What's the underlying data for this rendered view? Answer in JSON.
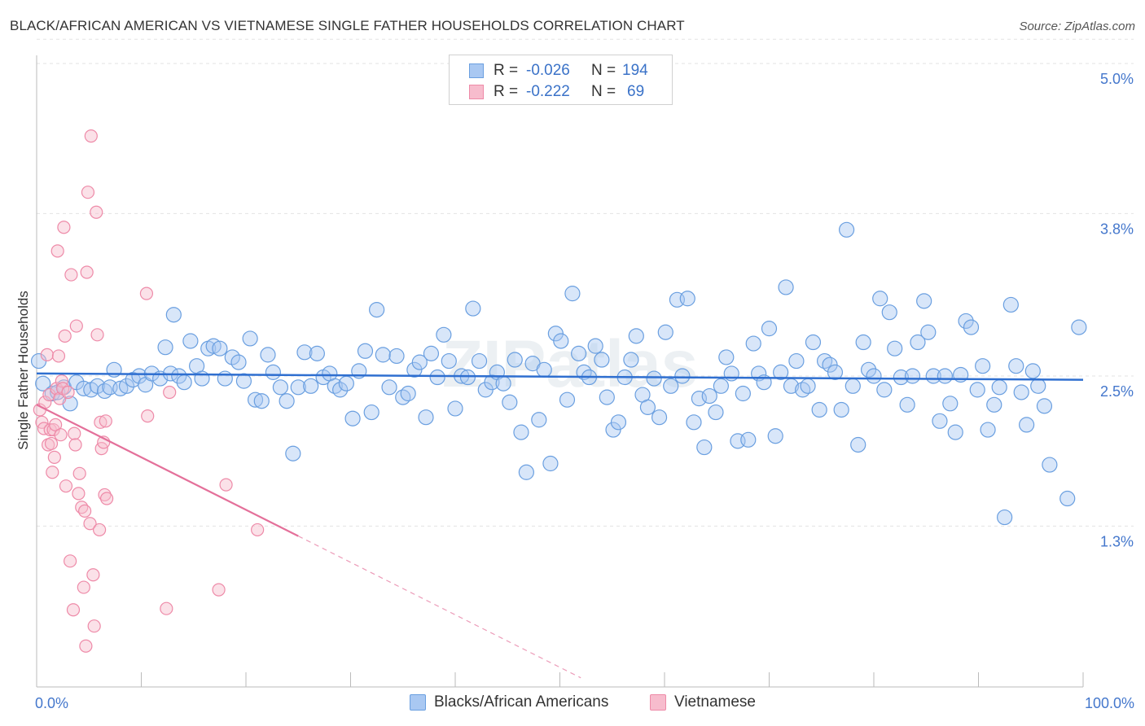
{
  "title": "BLACK/AFRICAN AMERICAN VS VIETNAMESE SINGLE FATHER HOUSEHOLDS CORRELATION CHART",
  "source": "Source: ZipAtlas.com",
  "watermark": "ZIPatlas",
  "colors": {
    "blue_fill": "#a9c8f2",
    "blue_stroke": "#6a9fe0",
    "blue_line": "#2f6fd0",
    "pink_fill": "#f7bccd",
    "pink_stroke": "#ee8aa8",
    "pink_line": "#e4709a",
    "tick_label": "#4477cc"
  },
  "legend_top": [
    {
      "r_label": "R =",
      "r_value": "-0.026",
      "n_label": "N =",
      "n_value": "194"
    },
    {
      "r_label": "R =",
      "r_value": "-0.222",
      "n_label": "N =",
      "n_value": "69"
    }
  ],
  "chart_data": {
    "type": "scatter",
    "xlabel": "",
    "ylabel": "Single Father Households",
    "xlim": [
      0,
      100
    ],
    "ylim": [
      0,
      5.2
    ],
    "x_tick_labels": [
      "0.0%",
      "100.0%"
    ],
    "y_ticks": [
      1.3,
      2.5,
      3.8,
      5.0
    ],
    "y_tick_labels": [
      "1.3%",
      "2.5%",
      "3.8%",
      "5.0%"
    ],
    "grid": true,
    "legend_position": "bottom",
    "series": [
      {
        "name": "Blacks/African Americans",
        "trend": {
          "x0": 0,
          "y0": 2.52,
          "x1": 100,
          "y1": 2.47
        },
        "points": [
          [
            0.2,
            2.62
          ],
          [
            0.6,
            2.44
          ],
          [
            1.5,
            2.36
          ],
          [
            2,
            2.37
          ],
          [
            2.6,
            2.41
          ],
          [
            3.2,
            2.28
          ],
          [
            3.8,
            2.45
          ],
          [
            4.5,
            2.4
          ],
          [
            5.2,
            2.39
          ],
          [
            5.8,
            2.42
          ],
          [
            6.5,
            2.38
          ],
          [
            7,
            2.41
          ],
          [
            7.4,
            2.55
          ],
          [
            8,
            2.4
          ],
          [
            8.6,
            2.42
          ],
          [
            9.2,
            2.47
          ],
          [
            9.8,
            2.5
          ],
          [
            10.4,
            2.43
          ],
          [
            11,
            2.52
          ],
          [
            11.8,
            2.48
          ],
          [
            12.3,
            2.73
          ],
          [
            12.8,
            2.52
          ],
          [
            13.1,
            2.99
          ],
          [
            13.6,
            2.5
          ],
          [
            14.1,
            2.45
          ],
          [
            14.7,
            2.78
          ],
          [
            15.3,
            2.58
          ],
          [
            15.8,
            2.48
          ],
          [
            16.4,
            2.72
          ],
          [
            16.9,
            2.74
          ],
          [
            17.5,
            2.72
          ],
          [
            18,
            2.48
          ],
          [
            18.7,
            2.65
          ],
          [
            19.3,
            2.61
          ],
          [
            19.8,
            2.46
          ],
          [
            20.4,
            2.8
          ],
          [
            20.9,
            2.31
          ],
          [
            21.5,
            2.3
          ],
          [
            22.1,
            2.67
          ],
          [
            22.6,
            2.53
          ],
          [
            23.3,
            2.41
          ],
          [
            23.9,
            2.3
          ],
          [
            24.5,
            1.88
          ],
          [
            25,
            2.41
          ],
          [
            25.6,
            2.69
          ],
          [
            26.2,
            2.42
          ],
          [
            26.8,
            2.68
          ],
          [
            27.4,
            2.49
          ],
          [
            28,
            2.52
          ],
          [
            28.5,
            2.42
          ],
          [
            29,
            2.39
          ],
          [
            29.6,
            2.44
          ],
          [
            30.2,
            2.16
          ],
          [
            30.8,
            2.54
          ],
          [
            31.4,
            2.7
          ],
          [
            32,
            2.21
          ],
          [
            32.5,
            3.03
          ],
          [
            33.1,
            2.67
          ],
          [
            33.7,
            2.41
          ],
          [
            34.4,
            2.66
          ],
          [
            35,
            2.33
          ],
          [
            35.5,
            2.36
          ],
          [
            36.1,
            2.55
          ],
          [
            36.6,
            2.61
          ],
          [
            37.2,
            2.17
          ],
          [
            37.7,
            2.68
          ],
          [
            38.3,
            2.49
          ],
          [
            38.9,
            2.83
          ],
          [
            39.4,
            2.62
          ],
          [
            40,
            2.24
          ],
          [
            40.6,
            2.5
          ],
          [
            41.2,
            2.49
          ],
          [
            41.7,
            3.04
          ],
          [
            42.3,
            2.62
          ],
          [
            42.9,
            2.39
          ],
          [
            43.5,
            2.45
          ],
          [
            44,
            2.53
          ],
          [
            44.6,
            2.44
          ],
          [
            45.2,
            2.29
          ],
          [
            45.7,
            2.63
          ],
          [
            46.3,
            2.05
          ],
          [
            46.8,
            1.73
          ],
          [
            47.4,
            2.6
          ],
          [
            48,
            2.15
          ],
          [
            48.5,
            2.55
          ],
          [
            49.1,
            1.8
          ],
          [
            49.6,
            2.84
          ],
          [
            50.1,
            2.78
          ],
          [
            50.7,
            2.31
          ],
          [
            51.2,
            3.16
          ],
          [
            51.8,
            2.68
          ],
          [
            52.3,
            2.53
          ],
          [
            52.8,
            2.49
          ],
          [
            53.4,
            2.74
          ],
          [
            54,
            2.63
          ],
          [
            54.5,
            2.33
          ],
          [
            55.1,
            2.07
          ],
          [
            55.6,
            2.13
          ],
          [
            56.2,
            2.49
          ],
          [
            56.8,
            2.63
          ],
          [
            57.3,
            2.82
          ],
          [
            57.9,
            2.35
          ],
          [
            58.4,
            2.25
          ],
          [
            59,
            2.48
          ],
          [
            59.5,
            2.17
          ],
          [
            60.1,
            2.85
          ],
          [
            60.6,
            2.42
          ],
          [
            61.2,
            3.11
          ],
          [
            61.7,
            2.5
          ],
          [
            62.2,
            3.12
          ],
          [
            62.8,
            2.13
          ],
          [
            63.3,
            2.32
          ],
          [
            63.8,
            1.93
          ],
          [
            64.3,
            2.34
          ],
          [
            64.9,
            2.21
          ],
          [
            65.4,
            2.42
          ],
          [
            65.9,
            2.65
          ],
          [
            66.4,
            2.52
          ],
          [
            67,
            1.98
          ],
          [
            67.5,
            2.36
          ],
          [
            68,
            1.99
          ],
          [
            68.5,
            2.76
          ],
          [
            69,
            2.52
          ],
          [
            69.5,
            2.45
          ],
          [
            70,
            2.88
          ],
          [
            70.6,
            2.02
          ],
          [
            71.1,
            2.53
          ],
          [
            71.6,
            3.21
          ],
          [
            72.1,
            2.42
          ],
          [
            72.6,
            2.62
          ],
          [
            73.2,
            2.39
          ],
          [
            73.7,
            2.42
          ],
          [
            74.2,
            2.77
          ],
          [
            74.8,
            2.23
          ],
          [
            75.3,
            2.62
          ],
          [
            75.8,
            2.59
          ],
          [
            76.3,
            2.53
          ],
          [
            76.9,
            2.23
          ],
          [
            77.4,
            3.67
          ],
          [
            78,
            2.42
          ],
          [
            78.5,
            1.95
          ],
          [
            79,
            2.77
          ],
          [
            79.5,
            2.55
          ],
          [
            80,
            2.5
          ],
          [
            80.6,
            3.12
          ],
          [
            81,
            2.39
          ],
          [
            81.5,
            3.01
          ],
          [
            82,
            2.72
          ],
          [
            82.6,
            2.49
          ],
          [
            83.2,
            2.27
          ],
          [
            83.7,
            2.5
          ],
          [
            84.2,
            2.77
          ],
          [
            84.8,
            3.1
          ],
          [
            85.2,
            2.85
          ],
          [
            85.7,
            2.5
          ],
          [
            86.3,
            2.14
          ],
          [
            86.8,
            2.5
          ],
          [
            87.3,
            2.28
          ],
          [
            87.8,
            2.05
          ],
          [
            88.3,
            2.51
          ],
          [
            88.8,
            2.94
          ],
          [
            89.3,
            2.89
          ],
          [
            89.9,
            2.39
          ],
          [
            90.4,
            2.58
          ],
          [
            90.9,
            2.07
          ],
          [
            91.5,
            2.27
          ],
          [
            92,
            2.41
          ],
          [
            92.5,
            1.37
          ],
          [
            93.1,
            3.07
          ],
          [
            93.6,
            2.58
          ],
          [
            94.1,
            2.37
          ],
          [
            94.6,
            2.11
          ],
          [
            95.2,
            2.54
          ],
          [
            95.7,
            2.42
          ],
          [
            96.3,
            2.26
          ],
          [
            96.8,
            1.79
          ],
          [
            98.5,
            1.52
          ],
          [
            99.6,
            2.89
          ]
        ]
      },
      {
        "name": "Vietnamese",
        "trend": {
          "x0": 0,
          "y0": 2.27,
          "x1": 25,
          "y1": 1.22,
          "dash_to_x": 52
        },
        "points": [
          [
            0.3,
            2.23
          ],
          [
            0.5,
            2.13
          ],
          [
            0.7,
            2.08
          ],
          [
            0.8,
            2.29
          ],
          [
            1,
            2.67
          ],
          [
            1.1,
            1.95
          ],
          [
            1.2,
            2.35
          ],
          [
            1.3,
            2.07
          ],
          [
            1.4,
            1.96
          ],
          [
            1.5,
            1.73
          ],
          [
            1.6,
            2.07
          ],
          [
            1.7,
            1.85
          ],
          [
            1.8,
            2.11
          ],
          [
            1.9,
            2.4
          ],
          [
            2,
            3.5
          ],
          [
            2.1,
            2.66
          ],
          [
            2.2,
            2.32
          ],
          [
            2.3,
            2.03
          ],
          [
            2.4,
            2.46
          ],
          [
            2.5,
            2.4
          ],
          [
            2.6,
            3.69
          ],
          [
            2.7,
            2.82
          ],
          [
            2.8,
            1.62
          ],
          [
            3,
            2.37
          ],
          [
            3.2,
            1.02
          ],
          [
            3.3,
            3.31
          ],
          [
            3.5,
            0.63
          ],
          [
            3.6,
            2.04
          ],
          [
            3.7,
            1.95
          ],
          [
            3.8,
            2.9
          ],
          [
            4,
            1.56
          ],
          [
            4.1,
            1.72
          ],
          [
            4.3,
            1.45
          ],
          [
            4.5,
            0.81
          ],
          [
            4.6,
            1.42
          ],
          [
            4.7,
            0.34
          ],
          [
            4.8,
            3.33
          ],
          [
            4.9,
            3.97
          ],
          [
            5.1,
            1.32
          ],
          [
            5.2,
            4.42
          ],
          [
            5.4,
            0.91
          ],
          [
            5.5,
            0.5
          ],
          [
            5.7,
            3.81
          ],
          [
            5.8,
            2.83
          ],
          [
            6,
            1.27
          ],
          [
            6.1,
            2.13
          ],
          [
            6.2,
            1.92
          ],
          [
            6.4,
            1.97
          ],
          [
            6.5,
            1.55
          ],
          [
            6.6,
            2.14
          ],
          [
            6.7,
            1.52
          ],
          [
            10.5,
            3.16
          ],
          [
            10.6,
            2.18
          ],
          [
            12.4,
            0.64
          ],
          [
            12.7,
            2.37
          ],
          [
            17.4,
            0.79
          ],
          [
            18.1,
            1.63
          ],
          [
            21.1,
            1.27
          ]
        ]
      }
    ]
  }
}
